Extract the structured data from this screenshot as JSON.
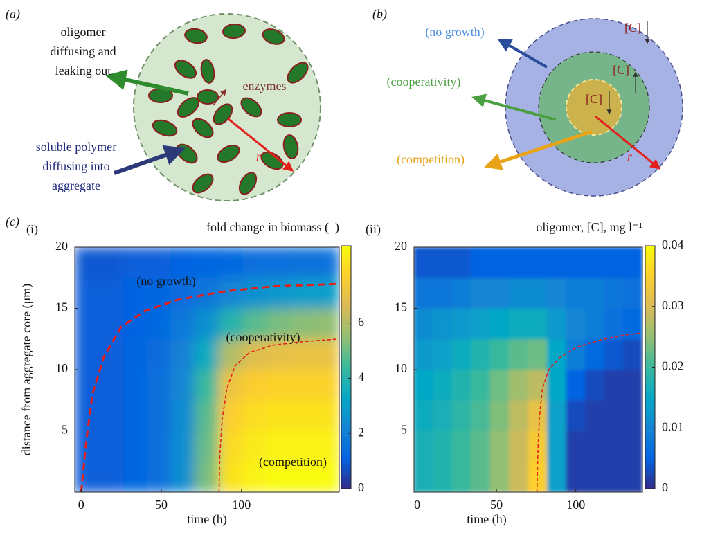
{
  "panel_a": {
    "label": "(a)",
    "oligomer_text": [
      "oligomer",
      "diffusing and",
      "leaking out"
    ],
    "enzymes": "enzymes",
    "polymer_text": [
      "soluble polymer",
      "diffusing into",
      "aggregate"
    ],
    "radius": "r"
  },
  "panel_b": {
    "label": "(b)",
    "no_growth": "(no growth)",
    "cooperativity": "(cooperativity)",
    "competition": "(competition)",
    "concentration_labels": [
      "[C]",
      "[C]",
      "[C]"
    ],
    "radius": "r"
  },
  "panel_c_label": "(c)",
  "chart_data": [
    {
      "type": "heatmap",
      "panel": "(i)",
      "title": "fold change in biomass (–)",
      "xlabel": "time (h)",
      "ylabel": "distance from aggregate core (μm)",
      "annotations": [
        "(no growth)",
        "(cooperativity)",
        "(competition)"
      ],
      "x": [
        3.5,
        18.5,
        33.5,
        48.5,
        63.5,
        78.5,
        93.5,
        108.5,
        123.5,
        138.5,
        153.5
      ],
      "y": [
        1.25,
        3.75,
        6.25,
        8.75,
        11.25,
        13.75,
        16.25,
        18.75
      ],
      "z": [
        [
          1,
          1,
          1.2,
          1.5,
          2.5,
          5.2,
          8.2,
          8.6,
          8.8,
          8.8,
          8.8
        ],
        [
          1,
          1,
          1.2,
          1.5,
          2.5,
          5,
          8,
          8.4,
          8.6,
          8.6,
          8.6
        ],
        [
          1,
          1,
          1.2,
          1.5,
          2.4,
          4.8,
          7.7,
          8.1,
          8.2,
          8.2,
          8.2
        ],
        [
          1,
          1,
          1.2,
          1.5,
          2.3,
          4.4,
          7.2,
          7.7,
          7.8,
          7.8,
          7.8
        ],
        [
          1,
          1,
          1.2,
          1.4,
          2.1,
          3.5,
          6,
          6.8,
          7,
          7.1,
          7.1
        ],
        [
          1,
          1,
          1.1,
          1.3,
          1.8,
          2.6,
          4,
          4.8,
          5.2,
          5.4,
          5.5
        ],
        [
          1,
          1,
          1.1,
          1.2,
          1.4,
          1.7,
          2.2,
          2.6,
          2.8,
          3,
          3
        ],
        [
          0.9,
          0.9,
          1,
          1,
          1.1,
          1.2,
          1.3,
          1.5,
          1.5,
          1.6,
          1.6
        ]
      ],
      "boundaries": [
        {
          "x": [
            0,
            3,
            7,
            14,
            25,
            40,
            60,
            90,
            120,
            161
          ],
          "y": [
            0,
            4,
            8,
            11,
            13.5,
            14.8,
            15.7,
            16.4,
            16.8,
            17
          ]
        },
        {
          "x": [
            86,
            86.5,
            88,
            91,
            96,
            105,
            120,
            140,
            161
          ],
          "y": [
            0,
            3,
            6,
            8.5,
            10.3,
            11.4,
            12,
            12.3,
            12.5
          ]
        }
      ],
      "xlim": [
        -4,
        161
      ],
      "ylim": [
        0,
        20
      ],
      "xticks": [
        0,
        50,
        100
      ],
      "yticks": [
        5,
        10,
        15,
        20
      ],
      "clim": [
        0,
        8.8
      ],
      "cticks": [
        0,
        2,
        4,
        6
      ],
      "colormap": "parula",
      "boundary_color": "#e3201b"
    },
    {
      "type": "heatmap",
      "panel": "(ii)",
      "title": "oligomer, [C], mg l⁻¹",
      "xlabel": "time (h)",
      "x": [
        4,
        16,
        28,
        40,
        52,
        64,
        76,
        88,
        100,
        112,
        124,
        136
      ],
      "y": [
        1.25,
        3.75,
        6.25,
        8.75,
        11.25,
        13.75,
        16.25,
        18.75
      ],
      "z": [
        [
          0.017,
          0.018,
          0.02,
          0.022,
          0.025,
          0.029,
          0.035,
          0.014,
          0.002,
          0.002,
          0.002,
          0.002
        ],
        [
          0.017,
          0.018,
          0.02,
          0.022,
          0.025,
          0.029,
          0.034,
          0.014,
          0.002,
          0.002,
          0.002,
          0.002
        ],
        [
          0.016,
          0.017,
          0.019,
          0.021,
          0.024,
          0.028,
          0.032,
          0.014,
          0.003,
          0.002,
          0.002,
          0.002
        ],
        [
          0.015,
          0.016,
          0.018,
          0.02,
          0.023,
          0.026,
          0.028,
          0.015,
          0.005,
          0.003,
          0.002,
          0.002
        ],
        [
          0.013,
          0.014,
          0.016,
          0.018,
          0.02,
          0.022,
          0.023,
          0.015,
          0.009,
          0.006,
          0.004,
          0.003
        ],
        [
          0.011,
          0.012,
          0.013,
          0.014,
          0.015,
          0.016,
          0.016,
          0.013,
          0.01,
          0.009,
          0.007,
          0.006
        ],
        [
          0.008,
          0.008,
          0.009,
          0.01,
          0.01,
          0.011,
          0.011,
          0.01,
          0.009,
          0.009,
          0.008,
          0.007
        ],
        [
          0.004,
          0.004,
          0.004,
          0.005,
          0.005,
          0.005,
          0.005,
          0.005,
          0.005,
          0.005,
          0.005,
          0.005
        ]
      ],
      "boundaries": [
        {
          "x": [
            75.5,
            76,
            77,
            79,
            83,
            90,
            100,
            115,
            130,
            142
          ],
          "y": [
            0,
            3,
            6,
            8.5,
            10,
            11,
            11.8,
            12.4,
            12.8,
            13
          ]
        }
      ],
      "xlim": [
        -2,
        142
      ],
      "ylim": [
        0,
        20
      ],
      "xticks": [
        0,
        50,
        100
      ],
      "yticks": [
        5,
        10,
        15,
        20
      ],
      "clim": [
        0,
        0.04
      ],
      "cticks": [
        0,
        0.01,
        0.02,
        0.03,
        0.04
      ],
      "colormap": "parula",
      "boundary_color": "#e3201b"
    }
  ]
}
